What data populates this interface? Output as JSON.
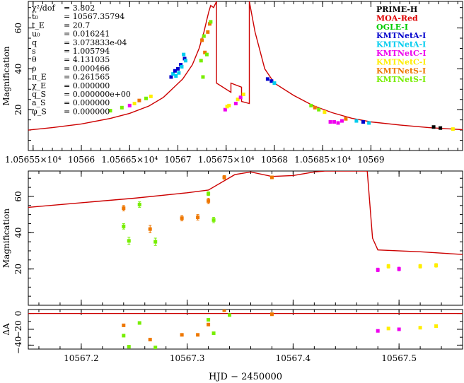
{
  "chart_data": [
    {
      "type": "scatter",
      "panel": "top",
      "ylabel": "Magnification",
      "xlim": [
        10565.45,
        10569.95
      ],
      "ylim": [
        0,
        73
      ],
      "x_ticks": [
        {
          "v": 10565.5,
          "label": "1.05655×10⁴"
        },
        {
          "v": 10566.0,
          "label": "10566"
        },
        {
          "v": 10566.5,
          "label": "1.05665×10⁴"
        },
        {
          "v": 10567.0,
          "label": "10567"
        },
        {
          "v": 10567.5,
          "label": "1.05675×10⁴"
        },
        {
          "v": 10568.0,
          "label": "10568"
        },
        {
          "v": 10568.5,
          "label": "1.05685×10⁴"
        },
        {
          "v": 10569.0,
          "label": "10569"
        }
      ],
      "y_ticks": [
        20,
        40,
        60
      ],
      "params": [
        {
          "label": "χ²/dof",
          "value": "= 3.802"
        },
        {
          "label": "t₀",
          "value": "= 10567.35794"
        },
        {
          "label": "t_E",
          "value": "= 20.7"
        },
        {
          "label": "u₀",
          "value": "= 0.016241"
        },
        {
          "label": "q",
          "value": "= 3.073833e-04"
        },
        {
          "label": "s",
          "value": "= 1.005794"
        },
        {
          "label": "θ",
          "value": "= 4.131035"
        },
        {
          "label": "ρ",
          "value": "= 0.000466"
        },
        {
          "label": "π_E",
          "value": "= 0.261565"
        },
        {
          "label": "χ_E",
          "value": "= 0.000000"
        },
        {
          "label": "q_S",
          "value": "= 0.000000e+00"
        },
        {
          "label": "a_S",
          "value": "= 0.000000"
        },
        {
          "label": "φ_S",
          "value": "= 0.000000"
        }
      ],
      "legend": [
        {
          "name": "PRIME-H",
          "color": "#000000"
        },
        {
          "name": "MOA-Red",
          "color": "#dd0000"
        },
        {
          "name": "OGLE-I",
          "color": "#00cc00"
        },
        {
          "name": "KMTNetA-I",
          "color": "#0000cc"
        },
        {
          "name": "KMTNetA-I",
          "color": "#00ccee"
        },
        {
          "name": "KMTNetC-I",
          "color": "#ee00ee"
        },
        {
          "name": "KMTNetC-I",
          "color": "#ffee00"
        },
        {
          "name": "KMTNetS-I",
          "color": "#ee7700"
        },
        {
          "name": "KMTNetS-I",
          "color": "#77ee00"
        }
      ],
      "model": [
        [
          10565.45,
          10.0
        ],
        [
          10565.7,
          11.2
        ],
        [
          10566.0,
          13.0
        ],
        [
          10566.3,
          15.7
        ],
        [
          10566.5,
          18.2
        ],
        [
          10566.7,
          21.8
        ],
        [
          10566.85,
          26.0
        ],
        [
          10566.95,
          30.5
        ],
        [
          10567.05,
          35.0
        ],
        [
          10567.15,
          42.0
        ],
        [
          10567.22,
          50.0
        ],
        [
          10567.27,
          58.0
        ],
        [
          10567.3,
          64.0
        ],
        [
          10567.32,
          68.0
        ],
        [
          10567.34,
          71.0
        ],
        [
          10567.37,
          70.0
        ],
        [
          10567.4,
          73.0
        ],
        [
          10567.4,
          33.0
        ],
        [
          10567.55,
          28.5
        ],
        [
          10567.55,
          33.0
        ],
        [
          10567.66,
          31.0
        ],
        [
          10567.66,
          24.0
        ],
        [
          10567.74,
          23.0
        ],
        [
          10567.74,
          73.0
        ],
        [
          10567.8,
          58.0
        ],
        [
          10567.9,
          40.0
        ],
        [
          10568.0,
          33.0
        ],
        [
          10568.2,
          27.0
        ],
        [
          10568.4,
          22.0
        ],
        [
          10568.6,
          18.5
        ],
        [
          10568.8,
          15.8
        ],
        [
          10569.0,
          14.0
        ],
        [
          10569.3,
          12.5
        ],
        [
          10569.6,
          11.2
        ],
        [
          10569.95,
          10.2
        ]
      ],
      "points": [
        {
          "c": "#77ee00",
          "x": 10566.3,
          "y": 19.5
        },
        {
          "c": "#77ee00",
          "x": 10566.42,
          "y": 21.0
        },
        {
          "c": "#ee00ee",
          "x": 10566.5,
          "y": 22.0
        },
        {
          "c": "#ffee00",
          "x": 10566.55,
          "y": 23.0
        },
        {
          "c": "#ee7700",
          "x": 10566.6,
          "y": 24.5
        },
        {
          "c": "#77ee00",
          "x": 10566.67,
          "y": 25.5
        },
        {
          "c": "#ffee00",
          "x": 10566.72,
          "y": 26.5
        },
        {
          "c": "#0000cc",
          "x": 10566.93,
          "y": 36.0
        },
        {
          "c": "#00ccee",
          "x": 10566.95,
          "y": 37.5
        },
        {
          "c": "#0000cc",
          "x": 10566.97,
          "y": 39.0
        },
        {
          "c": "#00ccee",
          "x": 10566.98,
          "y": 36.5
        },
        {
          "c": "#0000cc",
          "x": 10567.0,
          "y": 40.0
        },
        {
          "c": "#00ccee",
          "x": 10567.01,
          "y": 38.0
        },
        {
          "c": "#0000cc",
          "x": 10567.03,
          "y": 42.0
        },
        {
          "c": "#00ccee",
          "x": 10567.04,
          "y": 41.0
        },
        {
          "c": "#00ccee",
          "x": 10567.06,
          "y": 47.0
        },
        {
          "c": "#0000cc",
          "x": 10567.07,
          "y": 45.0
        },
        {
          "c": "#00ccee",
          "x": 10567.08,
          "y": 44.0
        },
        {
          "c": "#77ee00",
          "x": 10567.24,
          "y": 44.0
        },
        {
          "c": "#ee7700",
          "x": 10567.25,
          "y": 54.0
        },
        {
          "c": "#77ee00",
          "x": 10567.26,
          "y": 36.0
        },
        {
          "c": "#77ee00",
          "x": 10567.27,
          "y": 56.0
        },
        {
          "c": "#ee7700",
          "x": 10567.28,
          "y": 48.0
        },
        {
          "c": "#77ee00",
          "x": 10567.3,
          "y": 47.0
        },
        {
          "c": "#ee7700",
          "x": 10567.31,
          "y": 58.0
        },
        {
          "c": "#ee7700",
          "x": 10567.33,
          "y": 62.0
        },
        {
          "c": "#77ee00",
          "x": 10567.34,
          "y": 63.0
        },
        {
          "c": "#ee00ee",
          "x": 10567.49,
          "y": 20.0
        },
        {
          "c": "#ffee00",
          "x": 10567.51,
          "y": 21.5
        },
        {
          "c": "#ffee00",
          "x": 10567.53,
          "y": 22.0
        },
        {
          "c": "#ee00ee",
          "x": 10567.6,
          "y": 23.0
        },
        {
          "c": "#ffee00",
          "x": 10567.62,
          "y": 25.0
        },
        {
          "c": "#ee00ee",
          "x": 10567.65,
          "y": 26.0
        },
        {
          "c": "#ffee00",
          "x": 10567.68,
          "y": 27.5
        },
        {
          "c": "#0000cc",
          "x": 10567.93,
          "y": 35.0
        },
        {
          "c": "#0000cc",
          "x": 10567.97,
          "y": 34.0
        },
        {
          "c": "#00ccee",
          "x": 10568.0,
          "y": 33.0
        },
        {
          "c": "#77ee00",
          "x": 10568.38,
          "y": 22.0
        },
        {
          "c": "#ee7700",
          "x": 10568.42,
          "y": 21.0
        },
        {
          "c": "#77ee00",
          "x": 10568.46,
          "y": 20.0
        },
        {
          "c": "#ffee00",
          "x": 10568.52,
          "y": 18.8
        },
        {
          "c": "#ee00ee",
          "x": 10568.58,
          "y": 14.0
        },
        {
          "c": "#ee00ee",
          "x": 10568.62,
          "y": 14.0
        },
        {
          "c": "#ee00ee",
          "x": 10568.66,
          "y": 13.5
        },
        {
          "c": "#ee00ee",
          "x": 10568.7,
          "y": 14.5
        },
        {
          "c": "#ee7700",
          "x": 10568.74,
          "y": 15.5
        },
        {
          "c": "#00ccee",
          "x": 10568.85,
          "y": 14.5
        },
        {
          "c": "#0000cc",
          "x": 10568.92,
          "y": 14.0
        },
        {
          "c": "#00ccee",
          "x": 10568.98,
          "y": 13.5
        },
        {
          "c": "#000000",
          "x": 10569.65,
          "y": 11.5
        },
        {
          "c": "#000000",
          "x": 10569.72,
          "y": 11.0
        },
        {
          "c": "#ffee00",
          "x": 10569.85,
          "y": 10.5
        }
      ]
    },
    {
      "type": "scatter",
      "panel": "middle",
      "ylabel": "Magnification",
      "xlim": [
        10567.15,
        10567.56
      ],
      "ylim": [
        0,
        74
      ],
      "y_ticks": [
        20,
        40,
        60
      ],
      "model": [
        [
          10567.15,
          54.0
        ],
        [
          10567.2,
          56.5
        ],
        [
          10567.25,
          59.0
        ],
        [
          10567.3,
          62.0
        ],
        [
          10567.32,
          63.5
        ],
        [
          10567.345,
          72.0
        ],
        [
          10567.36,
          73.5
        ],
        [
          10567.38,
          71.0
        ],
        [
          10567.4,
          71.5
        ],
        [
          10567.42,
          73.5
        ],
        [
          10567.43,
          74.0
        ],
        [
          10567.47,
          74.0
        ],
        [
          10567.475,
          37.0
        ],
        [
          10567.48,
          30.5
        ],
        [
          10567.52,
          29.5
        ],
        [
          10567.56,
          28.0
        ]
      ],
      "points": [
        {
          "c": "#77ee00",
          "x": 10567.24,
          "y": 43.5,
          "e": 1.5
        },
        {
          "c": "#ee7700",
          "x": 10567.24,
          "y": 53.5,
          "e": 1.5
        },
        {
          "c": "#77ee00",
          "x": 10567.245,
          "y": 35.5,
          "e": 2.0
        },
        {
          "c": "#77ee00",
          "x": 10567.255,
          "y": 55.5,
          "e": 1.5
        },
        {
          "c": "#ee7700",
          "x": 10567.265,
          "y": 42.0,
          "e": 2.0
        },
        {
          "c": "#77ee00",
          "x": 10567.27,
          "y": 35.0,
          "e": 2.0
        },
        {
          "c": "#ee7700",
          "x": 10567.295,
          "y": 48.0,
          "e": 1.5
        },
        {
          "c": "#ee7700",
          "x": 10567.31,
          "y": 48.5,
          "e": 1.5
        },
        {
          "c": "#77ee00",
          "x": 10567.32,
          "y": 61.5,
          "e": 1.0
        },
        {
          "c": "#ee7700",
          "x": 10567.32,
          "y": 57.5,
          "e": 1.5
        },
        {
          "c": "#77ee00",
          "x": 10567.325,
          "y": 47.0,
          "e": 1.5
        },
        {
          "c": "#ee7700",
          "x": 10567.335,
          "y": 70.5,
          "e": 1.0
        },
        {
          "c": "#ee7700",
          "x": 10567.38,
          "y": 70.5,
          "e": 0.5
        },
        {
          "c": "#ee00ee",
          "x": 10567.48,
          "y": 19.5,
          "e": 1.0
        },
        {
          "c": "#ffee00",
          "x": 10567.49,
          "y": 21.5,
          "e": 1.0
        },
        {
          "c": "#ee00ee",
          "x": 10567.5,
          "y": 20.0,
          "e": 1.0
        },
        {
          "c": "#ffee00",
          "x": 10567.52,
          "y": 21.5,
          "e": 1.0
        },
        {
          "c": "#ffee00",
          "x": 10567.535,
          "y": 22.0,
          "e": 1.0
        }
      ]
    },
    {
      "type": "scatter",
      "panel": "residual",
      "ylabel": "ΔA",
      "xlabel": "HJD − 2450000",
      "xlim": [
        10567.15,
        10567.56
      ],
      "ylim": [
        -45,
        5
      ],
      "y_ticks": [
        {
          "v": 0,
          "label": "0"
        },
        {
          "v": -20,
          "label": "−20"
        },
        {
          "v": -40,
          "label": "−40"
        }
      ],
      "x_ticks": [
        {
          "v": 10567.2,
          "label": "10567.2"
        },
        {
          "v": 10567.3,
          "label": "10567.3"
        },
        {
          "v": 10567.4,
          "label": "10567.4"
        },
        {
          "v": 10567.5,
          "label": "10567.5"
        }
      ],
      "points": [
        {
          "c": "#77ee00",
          "x": 10567.24,
          "y": -28.0
        },
        {
          "c": "#ee7700",
          "x": 10567.24,
          "y": -15.0
        },
        {
          "c": "#77ee00",
          "x": 10567.245,
          "y": -42.0
        },
        {
          "c": "#77ee00",
          "x": 10567.255,
          "y": -12.0
        },
        {
          "c": "#ee7700",
          "x": 10567.265,
          "y": -33.0
        },
        {
          "c": "#77ee00",
          "x": 10567.27,
          "y": -43.0
        },
        {
          "c": "#ee7700",
          "x": 10567.295,
          "y": -27.0
        },
        {
          "c": "#ee7700",
          "x": 10567.31,
          "y": -27.0
        },
        {
          "c": "#77ee00",
          "x": 10567.32,
          "y": -8.0
        },
        {
          "c": "#ee7700",
          "x": 10567.32,
          "y": -14.0
        },
        {
          "c": "#77ee00",
          "x": 10567.325,
          "y": -25.0
        },
        {
          "c": "#ee7700",
          "x": 10567.335,
          "y": 4.0
        },
        {
          "c": "#77ee00",
          "x": 10567.34,
          "y": -2.0
        },
        {
          "c": "#ee7700",
          "x": 10567.38,
          "y": -1.0
        },
        {
          "c": "#ee00ee",
          "x": 10567.48,
          "y": -22.0
        },
        {
          "c": "#ffee00",
          "x": 10567.49,
          "y": -19.0
        },
        {
          "c": "#ee00ee",
          "x": 10567.5,
          "y": -20.0
        },
        {
          "c": "#ffee00",
          "x": 10567.52,
          "y": -18.0
        },
        {
          "c": "#ffee00",
          "x": 10567.535,
          "y": -16.0
        }
      ]
    }
  ]
}
